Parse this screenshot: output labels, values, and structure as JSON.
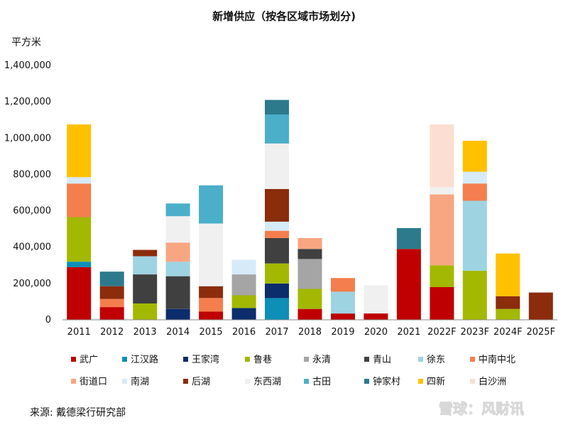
{
  "chart_data": {
    "type": "bar",
    "stacked": true,
    "title": "新增供应（按各区域市场划分)",
    "ylabel": "平方米",
    "ylim": [
      0,
      1400000
    ],
    "yticks": [
      0,
      200000,
      400000,
      600000,
      800000,
      1000000,
      1200000,
      1400000
    ],
    "ytick_labels": [
      "0",
      "200,000",
      "400,000",
      "600,000",
      "800,000",
      "1,000,000",
      "1,200,000",
      "1,400,000"
    ],
    "categories": [
      "2011",
      "2012",
      "2013",
      "2014",
      "2015",
      "2016",
      "2017",
      "2018",
      "2019",
      "2020",
      "2021",
      "2022F",
      "2023F",
      "2024F",
      "2025F"
    ],
    "legend_position": "bottom",
    "grid": false,
    "series": [
      {
        "name": "武广",
        "color": "#C00000",
        "values": [
          290000,
          70000,
          0,
          0,
          45000,
          0,
          0,
          60000,
          35000,
          35000,
          390000,
          180000,
          0,
          0,
          0
        ]
      },
      {
        "name": "江汉路",
        "color": "#0E8FB8",
        "values": [
          30000,
          0,
          0,
          0,
          0,
          0,
          120000,
          0,
          0,
          0,
          0,
          0,
          0,
          0,
          0
        ]
      },
      {
        "name": "王家湾",
        "color": "#0B2D6B",
        "values": [
          0,
          0,
          0,
          60000,
          0,
          65000,
          80000,
          0,
          0,
          0,
          0,
          0,
          0,
          0,
          0
        ]
      },
      {
        "name": "鲁巷",
        "color": "#A3B800",
        "values": [
          245000,
          0,
          90000,
          0,
          0,
          70000,
          110000,
          110000,
          0,
          0,
          0,
          120000,
          270000,
          60000,
          0
        ]
      },
      {
        "name": "永清",
        "color": "#A5A5A5",
        "values": [
          0,
          0,
          0,
          0,
          0,
          115000,
          0,
          165000,
          0,
          0,
          0,
          0,
          0,
          0,
          0
        ]
      },
      {
        "name": "青山",
        "color": "#404040",
        "values": [
          0,
          0,
          160000,
          180000,
          0,
          0,
          140000,
          55000,
          0,
          0,
          0,
          0,
          0,
          0,
          0
        ]
      },
      {
        "name": "徐东",
        "color": "#9ED3E2",
        "values": [
          0,
          0,
          100000,
          80000,
          0,
          0,
          0,
          0,
          120000,
          0,
          0,
          0,
          385000,
          0,
          0
        ]
      },
      {
        "name": "中南中北",
        "color": "#F47E4D",
        "values": [
          185000,
          45000,
          0,
          0,
          75000,
          0,
          40000,
          0,
          75000,
          0,
          0,
          0,
          95000,
          0,
          0
        ]
      },
      {
        "name": "街道口",
        "color": "#F7A681",
        "values": [
          0,
          0,
          0,
          105000,
          0,
          0,
          0,
          60000,
          0,
          0,
          0,
          390000,
          0,
          0,
          0
        ]
      },
      {
        "name": "南湖",
        "color": "#D6EBF8",
        "values": [
          35000,
          0,
          0,
          0,
          0,
          80000,
          50000,
          0,
          0,
          0,
          0,
          0,
          65000,
          0,
          0
        ]
      },
      {
        "name": "后湖",
        "color": "#8B2C0A",
        "values": [
          0,
          70000,
          35000,
          0,
          65000,
          0,
          180000,
          0,
          0,
          0,
          0,
          0,
          0,
          70000,
          150000
        ]
      },
      {
        "name": "东西湖",
        "color": "#F0F0F0",
        "values": [
          0,
          0,
          0,
          145000,
          345000,
          0,
          250000,
          0,
          0,
          155000,
          0,
          40000,
          0,
          0,
          0
        ]
      },
      {
        "name": "古田",
        "color": "#4BAFC9",
        "values": [
          0,
          0,
          0,
          70000,
          210000,
          0,
          160000,
          0,
          0,
          0,
          0,
          0,
          0,
          0,
          0
        ]
      },
      {
        "name": "钟家村",
        "color": "#2C7A8C",
        "values": [
          0,
          80000,
          0,
          0,
          0,
          0,
          80000,
          0,
          0,
          0,
          115000,
          0,
          0,
          0,
          0
        ]
      },
      {
        "name": "四新",
        "color": "#FFC000",
        "values": [
          290000,
          0,
          0,
          0,
          0,
          0,
          0,
          0,
          0,
          0,
          0,
          0,
          170000,
          235000,
          0
        ]
      },
      {
        "name": "白沙洲",
        "color": "#FCDFD2",
        "values": [
          0,
          0,
          0,
          0,
          0,
          0,
          0,
          0,
          0,
          0,
          0,
          345000,
          0,
          0,
          0
        ]
      }
    ]
  },
  "source_label": "来源: 戴德梁行研究部",
  "watermark": "雪球：风财讯"
}
